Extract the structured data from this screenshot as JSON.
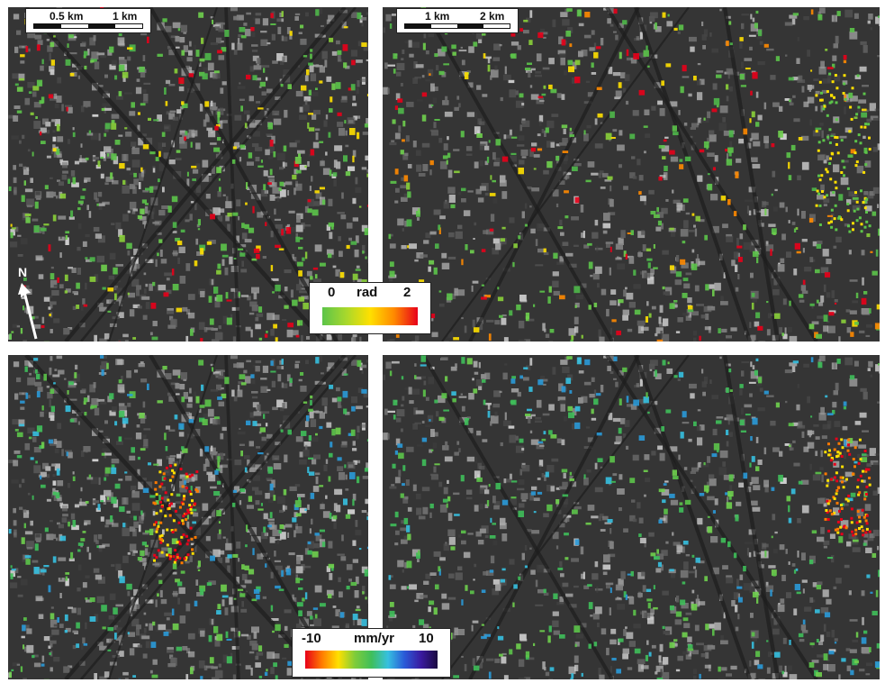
{
  "panels": [
    {
      "id": "coherence-left",
      "label": ""
    },
    {
      "id": "coherence-right",
      "label": ""
    },
    {
      "id": "velocity-left",
      "label": ""
    },
    {
      "id": "velocity-right",
      "label": ""
    }
  ],
  "scalebar_left": {
    "tick1": "0.5 km",
    "tick2": "1 km"
  },
  "scalebar_right": {
    "tick1": "1 km",
    "tick2": "2 km"
  },
  "north_arrow": {
    "label": "N"
  },
  "legend_phase": {
    "min": "0",
    "unit": "rad",
    "max": "2",
    "colors": [
      "#5cc44a",
      "#a8d82c",
      "#ffe000",
      "#ff8a00",
      "#e8001a"
    ]
  },
  "legend_velocity": {
    "min": "-10",
    "unit": "mm/yr",
    "max": "10",
    "colors": [
      "#e8001a",
      "#ff7a00",
      "#ffe000",
      "#7fcc3a",
      "#3fbf5a",
      "#36c0e0",
      "#2a5ad8",
      "#3a1aa0",
      "#1a0a40"
    ]
  },
  "colors": {
    "background": "#ffffff",
    "sar_dark": "#3a3a3a",
    "sar_light": "#c8c8c8"
  }
}
